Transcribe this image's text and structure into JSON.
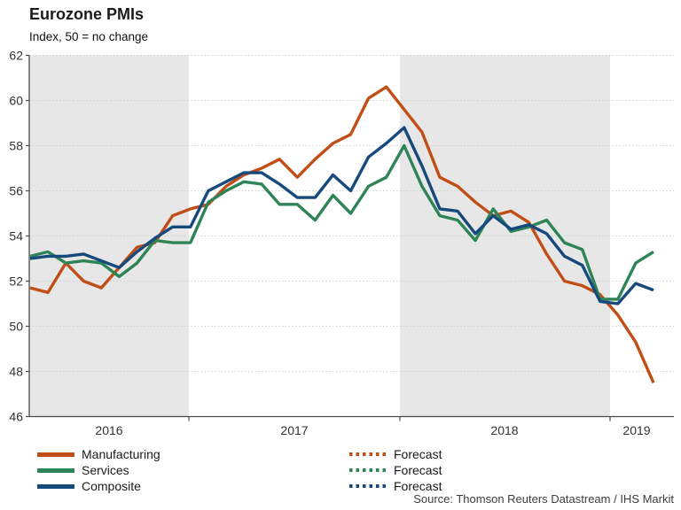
{
  "header": {
    "title": "Eurozone PMIs",
    "subtitle": "Index, 50 = no change"
  },
  "source": "Source: Thomson Reuters Datastream / IHS Markit",
  "colors": {
    "band": "#e7e7e7",
    "grid": "#cfcfcf",
    "axis": "#4d4d4d",
    "tick_text": "#333333"
  },
  "legend": {
    "left": [
      {
        "series": "manufacturing",
        "style": "solid",
        "label": "Manufacturing"
      },
      {
        "series": "services",
        "style": "solid",
        "label": "Services"
      },
      {
        "series": "composite",
        "style": "solid",
        "label": "Composite"
      }
    ],
    "right": [
      {
        "series": "manufacturing",
        "style": "dotted",
        "label": "Forecast"
      },
      {
        "series": "services",
        "style": "dotted",
        "label": "Forecast"
      },
      {
        "series": "composite",
        "style": "dotted",
        "label": "Forecast"
      }
    ]
  },
  "chart_data": {
    "type": "line",
    "title": "Eurozone PMIs",
    "subtitle": "Index, 50 = no change",
    "ylim": [
      46,
      62
    ],
    "ytick_step": 2,
    "grid": "horizontal-dotted",
    "legend_position": "bottom",
    "x_year_labels": [
      "2016",
      "2017",
      "2018",
      "2019"
    ],
    "shaded_year_bands": [
      "2016",
      "2018"
    ],
    "x": [
      "2016-04",
      "2016-05",
      "2016-06",
      "2016-07",
      "2016-08",
      "2016-09",
      "2016-10",
      "2016-11",
      "2016-12",
      "2017-01",
      "2017-02",
      "2017-03",
      "2017-04",
      "2017-05",
      "2017-06",
      "2017-07",
      "2017-08",
      "2017-09",
      "2017-10",
      "2017-11",
      "2017-12",
      "2018-01",
      "2018-02",
      "2018-03",
      "2018-04",
      "2018-05",
      "2018-06",
      "2018-07",
      "2018-08",
      "2018-09",
      "2018-10",
      "2018-11",
      "2018-12",
      "2019-01",
      "2019-02",
      "2019-03"
    ],
    "series": [
      {
        "name": "Manufacturing",
        "color": "#c04f17",
        "values": [
          51.7,
          51.5,
          52.8,
          52.0,
          51.7,
          52.6,
          53.5,
          53.7,
          54.9,
          55.2,
          55.4,
          56.2,
          56.7,
          57.0,
          57.4,
          56.6,
          57.4,
          58.1,
          58.5,
          60.1,
          60.6,
          59.6,
          58.6,
          56.6,
          56.2,
          55.5,
          54.9,
          55.1,
          54.6,
          53.2,
          52.0,
          51.8,
          51.4,
          50.5,
          49.3,
          47.5
        ]
      },
      {
        "name": "Services",
        "color": "#2e8456",
        "values": [
          53.1,
          53.3,
          52.8,
          52.9,
          52.8,
          52.2,
          52.8,
          53.8,
          53.7,
          53.7,
          55.5,
          56.0,
          56.4,
          56.3,
          55.4,
          55.4,
          54.7,
          55.8,
          55.0,
          56.2,
          56.6,
          58.0,
          56.2,
          54.9,
          54.7,
          53.8,
          55.2,
          54.2,
          54.4,
          54.7,
          53.7,
          53.4,
          51.2,
          51.2,
          52.8,
          53.3
        ]
      },
      {
        "name": "Composite",
        "color": "#16497c",
        "values": [
          53.0,
          53.1,
          53.1,
          53.2,
          52.9,
          52.6,
          53.3,
          53.9,
          54.4,
          54.4,
          56.0,
          56.4,
          56.8,
          56.8,
          56.3,
          55.7,
          55.7,
          56.7,
          56.0,
          57.5,
          58.1,
          58.8,
          57.1,
          55.2,
          55.1,
          54.1,
          54.9,
          54.3,
          54.5,
          54.1,
          53.1,
          52.7,
          51.1,
          51.0,
          51.9,
          51.6
        ]
      }
    ]
  }
}
